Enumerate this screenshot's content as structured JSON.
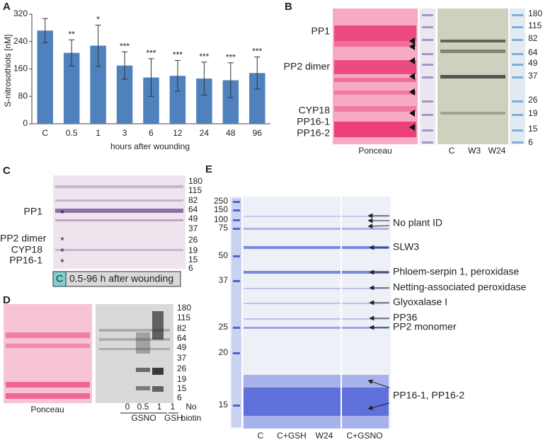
{
  "chart_data": {
    "type": "bar",
    "letter": "A",
    "ylabel": "S-nitrosothiols [nM]",
    "xlabel": "hours after wounding",
    "categories": [
      "C",
      "0.5",
      "1",
      "3",
      "6",
      "12",
      "24",
      "48",
      "96"
    ],
    "values": [
      272,
      207,
      228,
      170,
      135,
      140,
      132,
      127,
      148
    ],
    "errors": [
      35,
      38,
      60,
      40,
      55,
      45,
      48,
      51,
      47
    ],
    "annotations": [
      null,
      "**",
      "*",
      "***",
      "***",
      "***",
      "***",
      "***",
      "***"
    ],
    "color": "#4f81bd",
    "ylim": [
      0,
      320
    ],
    "yticks": [
      0,
      80,
      160,
      240,
      320
    ]
  },
  "panel_b": {
    "letter": "B",
    "protein_labels": [
      "PP1",
      "PP2 dimer",
      "CYP18",
      "PP16-1",
      "PP16-2"
    ],
    "markers": [
      180,
      115,
      82,
      64,
      49,
      37,
      26,
      19,
      15,
      6
    ],
    "image_label": "Ponceau",
    "lane_labels": [
      "C",
      "W3",
      "W24"
    ]
  },
  "panel_c": {
    "letter": "C",
    "protein_labels": [
      "PP1",
      "PP2 dimer",
      "CYP18",
      "PP16-1"
    ],
    "asterisks": [
      "*",
      "*",
      "*",
      "*"
    ],
    "markers": [
      180,
      115,
      82,
      64,
      49,
      37,
      26,
      19,
      15,
      6
    ],
    "control_label": "C",
    "range_label": "0.5-96 h after wounding"
  },
  "panel_d": {
    "letter": "D",
    "image_label": "Ponceau",
    "markers": [
      180,
      115,
      82,
      64,
      49,
      37,
      26,
      19,
      15,
      6
    ],
    "lane_labels": [
      "0",
      "0.5",
      "1",
      "1",
      "No"
    ],
    "group_labels": [
      "GSNO",
      "GSH",
      "biotin"
    ]
  },
  "panel_e": {
    "letter": "E",
    "markers": [
      250,
      150,
      100,
      75,
      50,
      37,
      25,
      20,
      15
    ],
    "band_labels": [
      "No plant ID",
      "SLW3",
      "Phloem-serpin 1, peroxidase",
      "Netting-associated peroxidase",
      "Glyoxalase I",
      "PP36",
      "PP2 monomer",
      "PP16-1, PP16-2"
    ],
    "lane_labels": [
      "C",
      "C+GSH",
      "W24",
      "C+GSNO"
    ]
  }
}
